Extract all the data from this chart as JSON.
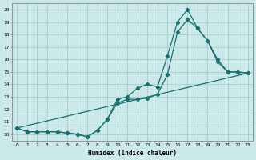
{
  "xlabel": "Humidex (Indice chaleur)",
  "bg_color": "#cce9e9",
  "line_color": "#1a7070",
  "grid_color": "#aad0d0",
  "xlim": [
    -0.5,
    23.5
  ],
  "ylim": [
    9.5,
    20.5
  ],
  "xticks": [
    0,
    1,
    2,
    3,
    4,
    5,
    6,
    7,
    8,
    9,
    10,
    11,
    12,
    13,
    14,
    15,
    16,
    17,
    18,
    19,
    20,
    21,
    22,
    23
  ],
  "yticks": [
    10,
    11,
    12,
    13,
    14,
    15,
    16,
    17,
    18,
    19,
    20
  ],
  "line1_x": [
    0,
    1,
    2,
    3,
    4,
    5,
    6,
    7,
    8,
    9,
    10,
    11,
    12,
    13,
    14,
    15,
    16,
    17,
    18,
    19,
    20,
    21,
    22,
    23
  ],
  "line1_y": [
    10.5,
    10.2,
    10.2,
    10.2,
    10.2,
    10.1,
    10.0,
    9.8,
    10.3,
    11.2,
    12.8,
    13.0,
    13.7,
    14.0,
    13.8,
    16.3,
    19.0,
    20.0,
    18.5,
    17.5,
    16.0,
    15.0,
    15.0,
    14.9
  ],
  "line2_x": [
    0,
    1,
    2,
    3,
    4,
    5,
    6,
    7,
    8,
    9,
    10,
    11,
    12,
    13,
    14,
    15,
    16,
    17,
    18,
    19,
    20,
    21,
    22,
    23
  ],
  "line2_y": [
    10.5,
    10.2,
    10.2,
    10.2,
    10.2,
    10.1,
    10.0,
    9.8,
    10.3,
    11.2,
    12.5,
    12.8,
    12.8,
    12.9,
    13.2,
    14.8,
    18.2,
    19.2,
    18.5,
    17.5,
    15.8,
    15.0,
    15.0,
    14.9
  ],
  "line3_x": [
    0,
    23
  ],
  "line3_y": [
    10.5,
    14.9
  ]
}
